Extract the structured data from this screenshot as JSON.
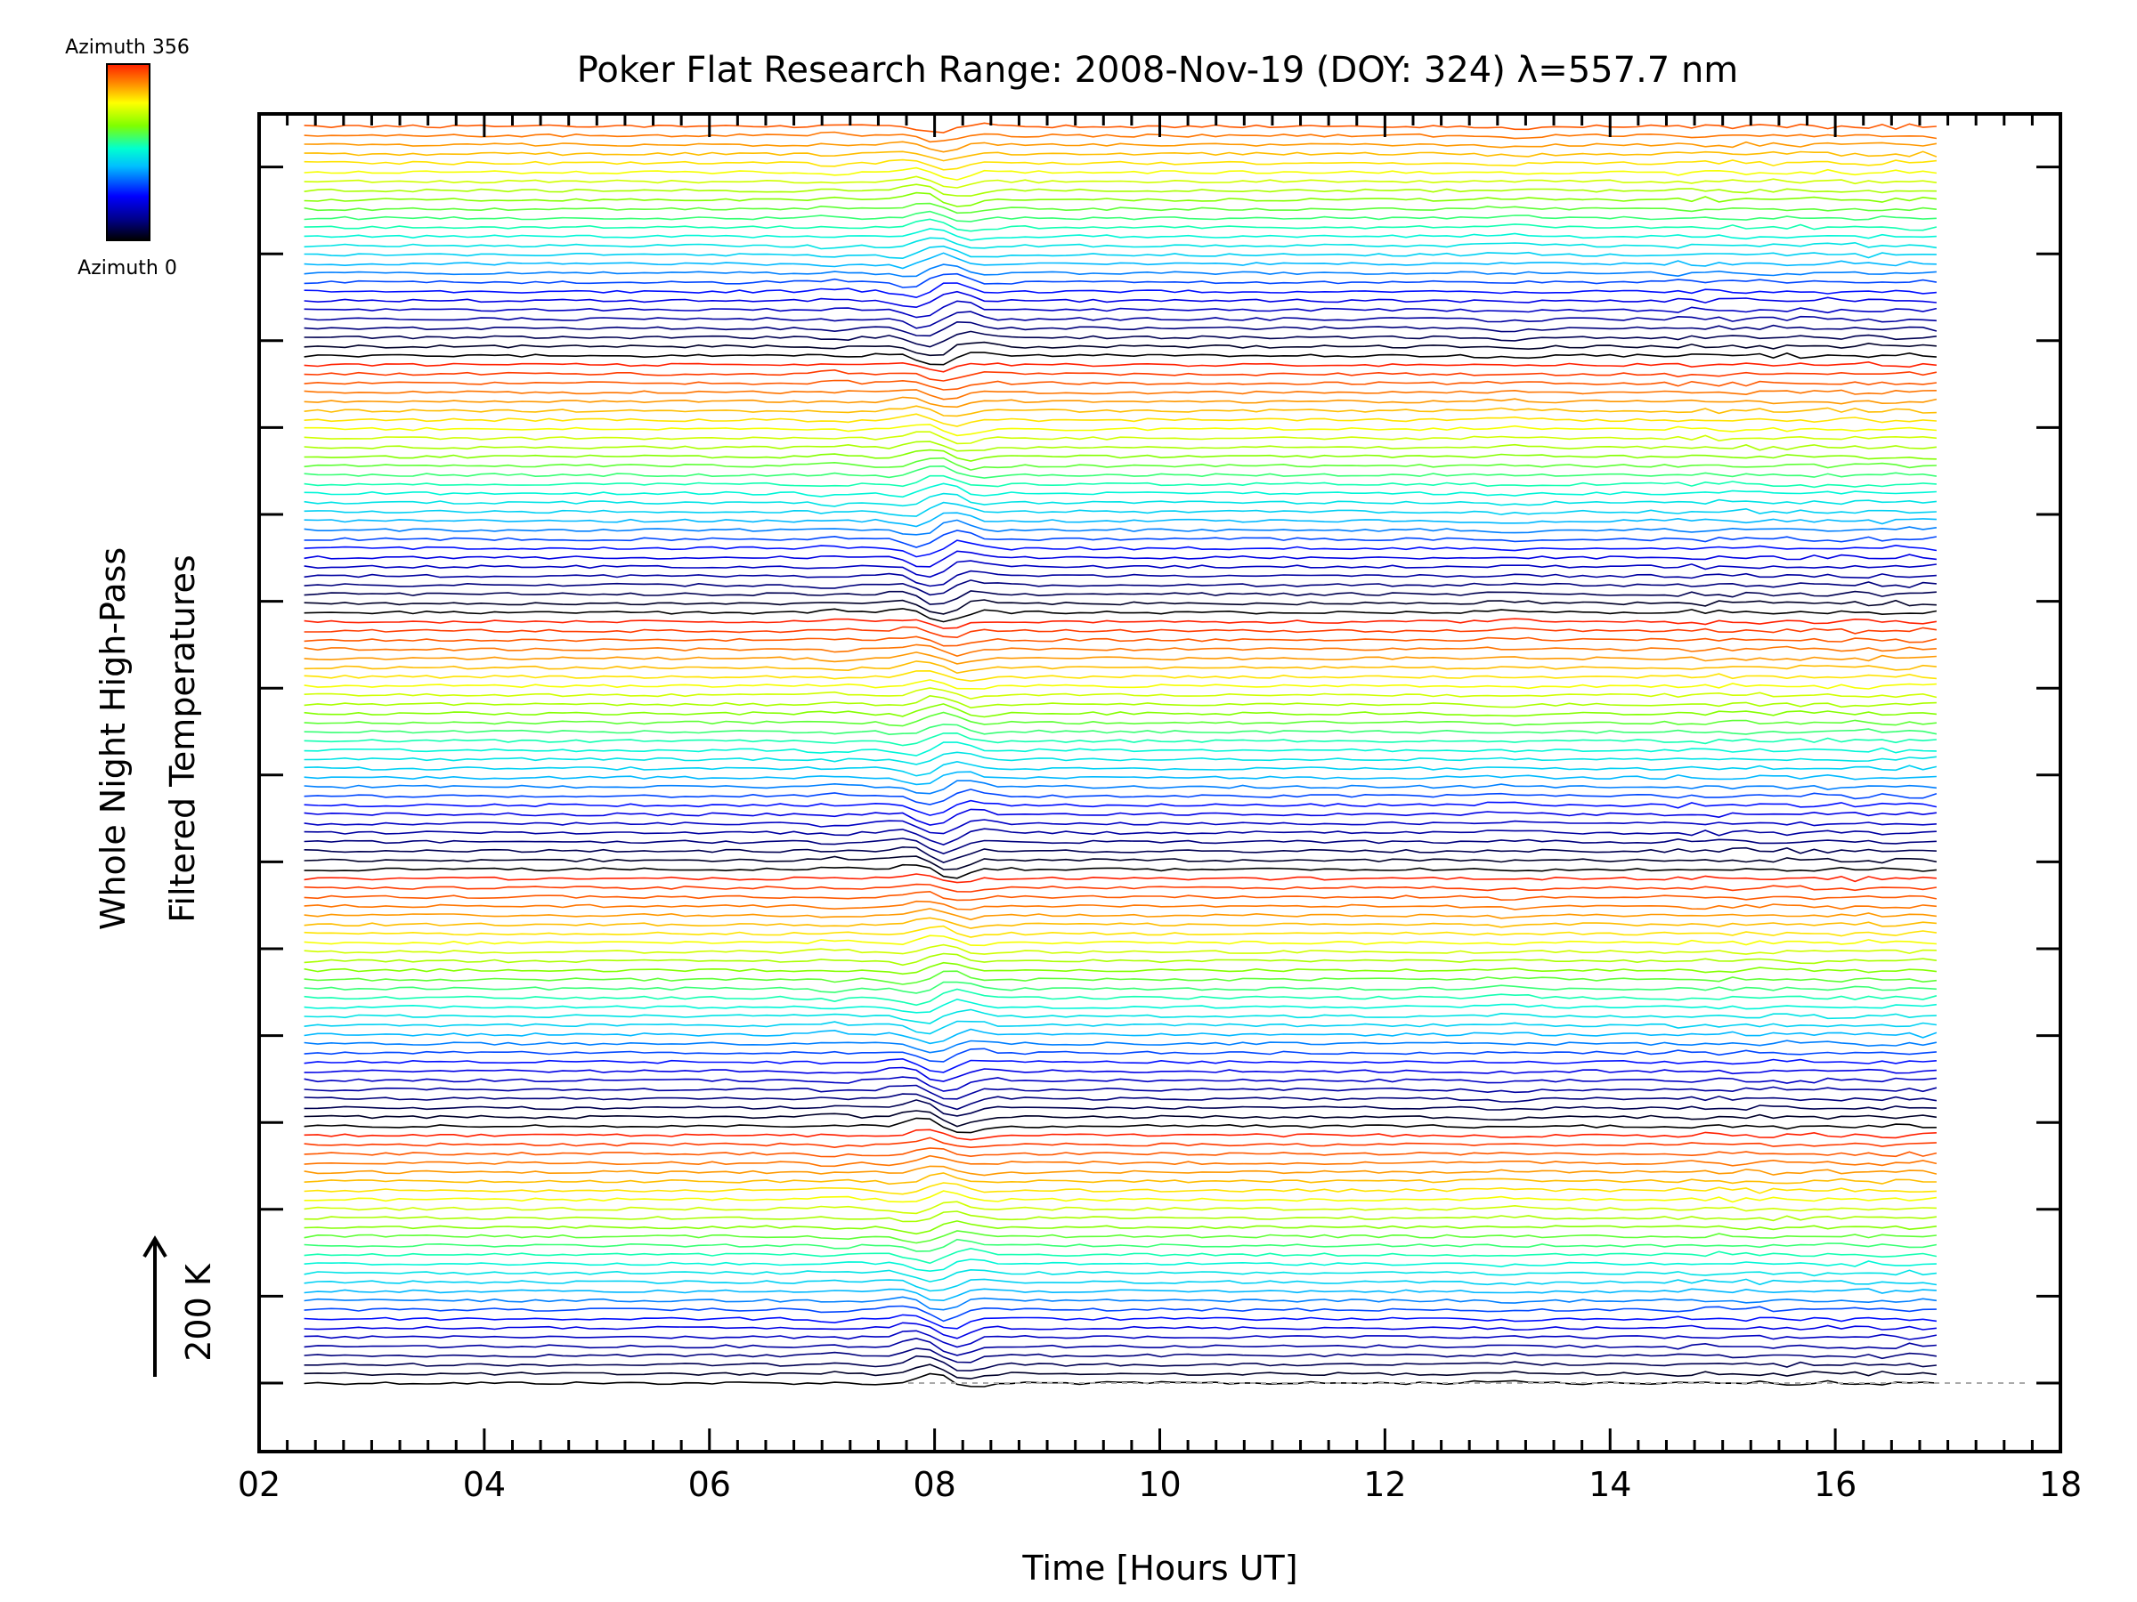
{
  "chart_data": {
    "type": "line",
    "title": "Poker Flat Research Range: 2008-Nov-19 (DOY: 324) λ=557.7 nm",
    "xlabel": "Time [Hours UT]",
    "ylabel_line1": "Whole Night High-Pass",
    "ylabel_line2": "Filtered Temperatures",
    "scale_bar_label": "200 K",
    "xlim": [
      2,
      18
    ],
    "x_tick_labels": [
      "02",
      "04",
      "06",
      "08",
      "10",
      "12",
      "14",
      "16",
      "18"
    ],
    "x_ticks": [
      2,
      4,
      6,
      8,
      10,
      12,
      14,
      16,
      18
    ],
    "data_time_range": [
      2.4,
      16.9
    ],
    "colorbar": {
      "top_label": "Azimuth 356",
      "bottom_label": "Azimuth 0",
      "range": [
        0,
        356
      ]
    },
    "series_count": 138,
    "azimuth_cycles": 5,
    "color_scale": [
      "#000000",
      "#00008b",
      "#0000ff",
      "#00bfff",
      "#00ffd0",
      "#7fff00",
      "#ffff00",
      "#ff8000",
      "#ff2000"
    ],
    "grid": false
  }
}
